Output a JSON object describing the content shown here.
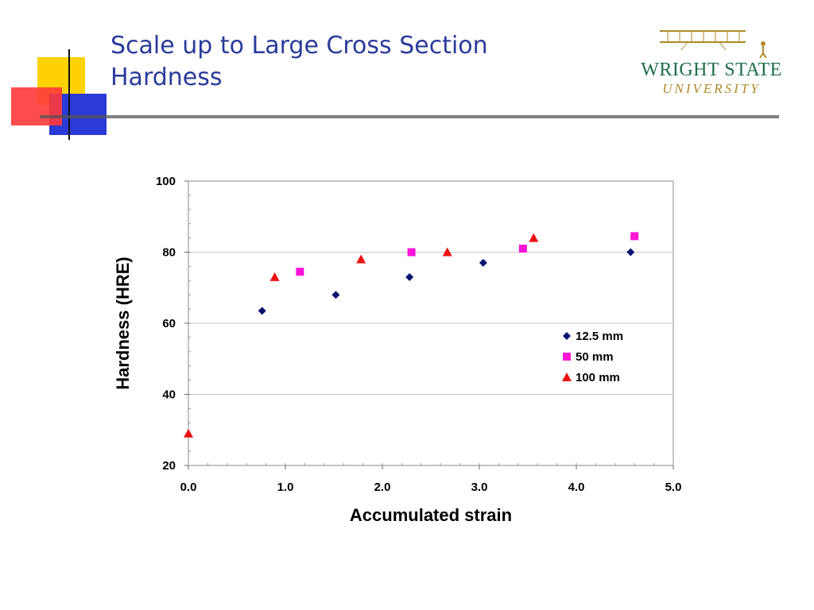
{
  "slide": {
    "title_line1": "Scale up to Large Cross Section",
    "title_line2": "Hardness"
  },
  "logo": {
    "name": "WRIGHT STATE",
    "subtitle": "UNIVERSITY"
  },
  "colors": {
    "title": "#2a3b9a",
    "accent_yellow": "#ffd200",
    "accent_red": "#ff2020",
    "accent_blue": "#2a3bd6",
    "logo_green": "#1f6e4a",
    "logo_gold": "#b08a2a"
  },
  "chart_data": {
    "type": "scatter",
    "title": "",
    "xlabel": "Accumulated strain",
    "ylabel": "Hardness (HRE)",
    "xlim": [
      0,
      5
    ],
    "ylim": [
      20,
      100
    ],
    "xticks": [
      "0.0",
      "1.0",
      "2.0",
      "3.0",
      "4.0",
      "5.0"
    ],
    "yticks": [
      "20",
      "40",
      "60",
      "80",
      "100"
    ],
    "grid": "horizontal",
    "legend_position": "inside-right",
    "series": [
      {
        "name": "12.5 mm",
        "marker": "diamond",
        "color": "#0b1470",
        "x": [
          0.76,
          1.52,
          2.28,
          3.04,
          4.56
        ],
        "y": [
          63.5,
          68.0,
          73.0,
          77.0,
          80.0
        ]
      },
      {
        "name": "50 mm",
        "marker": "square",
        "color": "#ff14d8",
        "x": [
          1.15,
          2.3,
          3.45,
          4.6
        ],
        "y": [
          74.5,
          80.0,
          81.0,
          84.5
        ]
      },
      {
        "name": "100 mm",
        "marker": "triangle",
        "color": "#ee1111",
        "x": [
          0.0,
          0.89,
          1.78,
          2.67,
          3.56
        ],
        "y": [
          29.0,
          73.0,
          78.0,
          80.0,
          84.0
        ]
      }
    ]
  }
}
